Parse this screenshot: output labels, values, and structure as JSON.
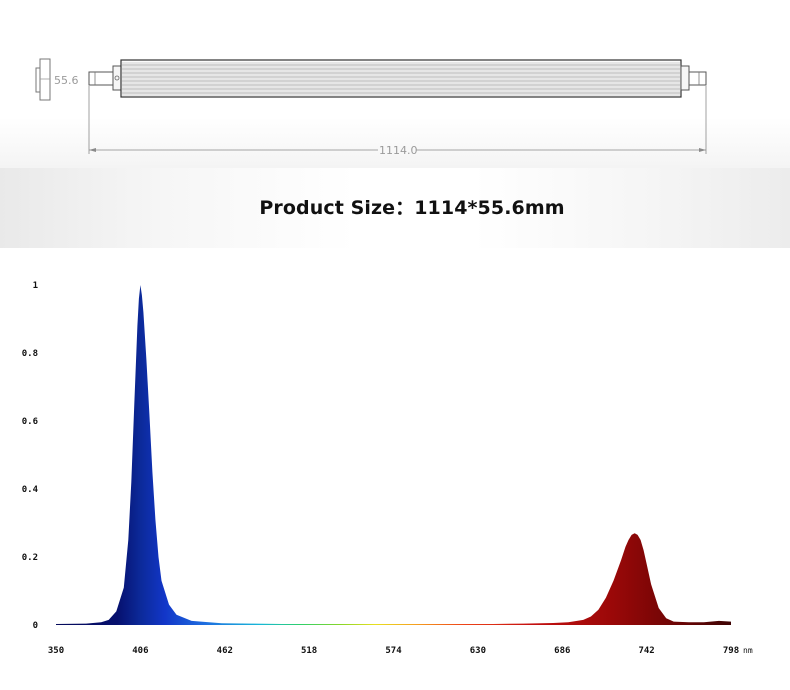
{
  "drawing": {
    "height_dimension": "55.6",
    "length_dimension": "1114.0"
  },
  "product_size": "Product Size：1114*55.6mm",
  "chart_data": {
    "type": "area",
    "title": "",
    "xlabel": "",
    "ylabel": "",
    "x_unit": "nm",
    "xlim": [
      350,
      800
    ],
    "ylim": [
      0,
      1
    ],
    "x_ticks": [
      350,
      406,
      462,
      518,
      574,
      630,
      686,
      742,
      798
    ],
    "y_ticks": [
      0,
      0.2,
      0.4,
      0.6,
      0.8,
      1
    ],
    "y_tick_labels": [
      "0",
      "0.2",
      "0.4",
      "0.6",
      "0.8",
      "1"
    ],
    "grid": false,
    "series": [
      {
        "x": [
          350,
          370,
          380,
          385,
          390,
          395,
          398,
          400,
          402,
          404,
          405,
          406,
          407,
          408,
          410,
          412,
          414,
          416,
          418,
          420,
          425,
          430,
          440,
          460,
          480,
          500,
          520,
          540,
          560,
          580,
          600,
          620,
          640,
          660,
          680,
          690,
          700,
          705,
          710,
          715,
          720,
          725,
          728,
          730,
          732,
          734,
          736,
          738,
          740,
          742,
          745,
          750,
          755,
          760,
          770,
          780,
          790,
          798
        ],
        "values": [
          0.003,
          0.004,
          0.008,
          0.015,
          0.04,
          0.11,
          0.25,
          0.42,
          0.65,
          0.88,
          0.96,
          1.0,
          0.97,
          0.92,
          0.78,
          0.62,
          0.45,
          0.31,
          0.2,
          0.13,
          0.06,
          0.03,
          0.012,
          0.005,
          0.004,
          0.003,
          0.003,
          0.003,
          0.003,
          0.003,
          0.003,
          0.003,
          0.003,
          0.004,
          0.006,
          0.008,
          0.015,
          0.025,
          0.045,
          0.08,
          0.13,
          0.19,
          0.23,
          0.25,
          0.265,
          0.27,
          0.265,
          0.25,
          0.22,
          0.18,
          0.12,
          0.05,
          0.02,
          0.01,
          0.008,
          0.008,
          0.012,
          0.01
        ]
      }
    ]
  },
  "colors": {
    "violet": "#0a1280",
    "deep_blue": "#0b2aa8",
    "red": "#8b0a0a",
    "dimension_line": "#8a8a8a"
  }
}
